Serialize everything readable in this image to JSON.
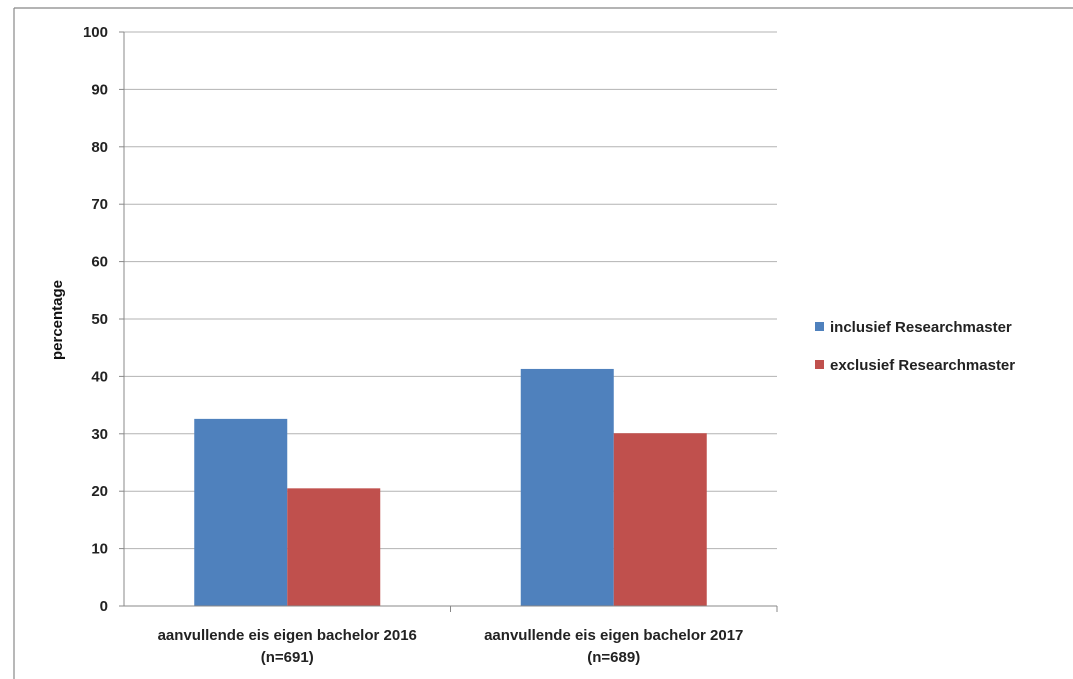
{
  "chart_data": {
    "type": "bar",
    "title": "",
    "xlabel": "",
    "ylabel": "percentage",
    "ylim": [
      0,
      100
    ],
    "yticks": [
      0,
      10,
      20,
      30,
      40,
      50,
      60,
      70,
      80,
      90,
      100
    ],
    "categories": [
      [
        "aanvullende eis eigen bachelor 2016",
        "(n=691)"
      ],
      [
        "aanvullende eis eigen bachelor 2017",
        "(n=689)"
      ]
    ],
    "series": [
      {
        "name": "inclusief Researchmaster",
        "color": "#4f81bd",
        "values": [
          32.6,
          41.3
        ]
      },
      {
        "name": "exclusief Researchmaster",
        "color": "#c0504d",
        "values": [
          20.5,
          30.1
        ]
      }
    ],
    "grid": true,
    "legend": "right"
  }
}
